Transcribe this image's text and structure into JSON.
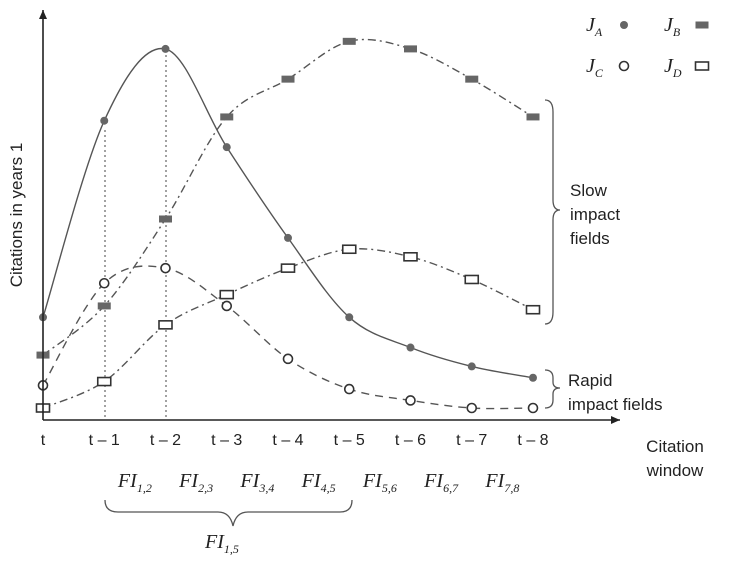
{
  "chart_data": {
    "type": "line",
    "ylabel": "Citations in years 1",
    "xlabel_line1": "Citation",
    "xlabel_line2": "window",
    "categories": [
      "t",
      "t – 1",
      "t – 2",
      "t – 3",
      "t – 4",
      "t – 5",
      "t – 6",
      "t – 7",
      "t – 8"
    ],
    "y_axis_ticks": "none",
    "grid": false,
    "legend_position": "top-right",
    "series": [
      {
        "name": "J_A",
        "main": "J",
        "sub": "A",
        "marker": "filled-circle",
        "line": "solid",
        "values": [
          0.24,
          0.76,
          0.95,
          0.69,
          0.45,
          0.24,
          0.16,
          0.11,
          0.08
        ]
      },
      {
        "name": "J_B",
        "main": "J",
        "sub": "B",
        "marker": "filled-rect",
        "line": "dashdot",
        "values": [
          0.14,
          0.27,
          0.5,
          0.77,
          0.87,
          0.97,
          0.95,
          0.87,
          0.77
        ]
      },
      {
        "name": "J_C",
        "main": "J",
        "sub": "C",
        "marker": "open-circle",
        "line": "dashed",
        "values": [
          0.06,
          0.33,
          0.37,
          0.27,
          0.13,
          0.05,
          0.02,
          0.0,
          0.0
        ]
      },
      {
        "name": "J_D",
        "main": "J",
        "sub": "D",
        "marker": "open-rect",
        "line": "dashdot",
        "values": [
          0.0,
          0.07,
          0.22,
          0.3,
          0.37,
          0.42,
          0.4,
          0.34,
          0.26
        ]
      }
    ],
    "reference_lines": [
      "t – 1",
      "t – 2"
    ],
    "annotations": {
      "slow_line1": "Slow",
      "slow_line2": "impact",
      "slow_line3": "fields",
      "rapid_line1": "Rapid",
      "rapid_line2": "impact fields"
    },
    "fi_labels": [
      {
        "main": "FI",
        "sub": "1,2"
      },
      {
        "main": "FI",
        "sub": "2,3"
      },
      {
        "main": "FI",
        "sub": "3,4"
      },
      {
        "main": "FI",
        "sub": "4,5"
      },
      {
        "main": "FI",
        "sub": "5,6"
      },
      {
        "main": "FI",
        "sub": "6,7"
      },
      {
        "main": "FI",
        "sub": "7,8"
      }
    ],
    "fi_brace_label": {
      "main": "FI",
      "sub": "1,5"
    },
    "colors": {
      "axis": "#222222",
      "series": "#555555",
      "fill": "#666666"
    }
  }
}
